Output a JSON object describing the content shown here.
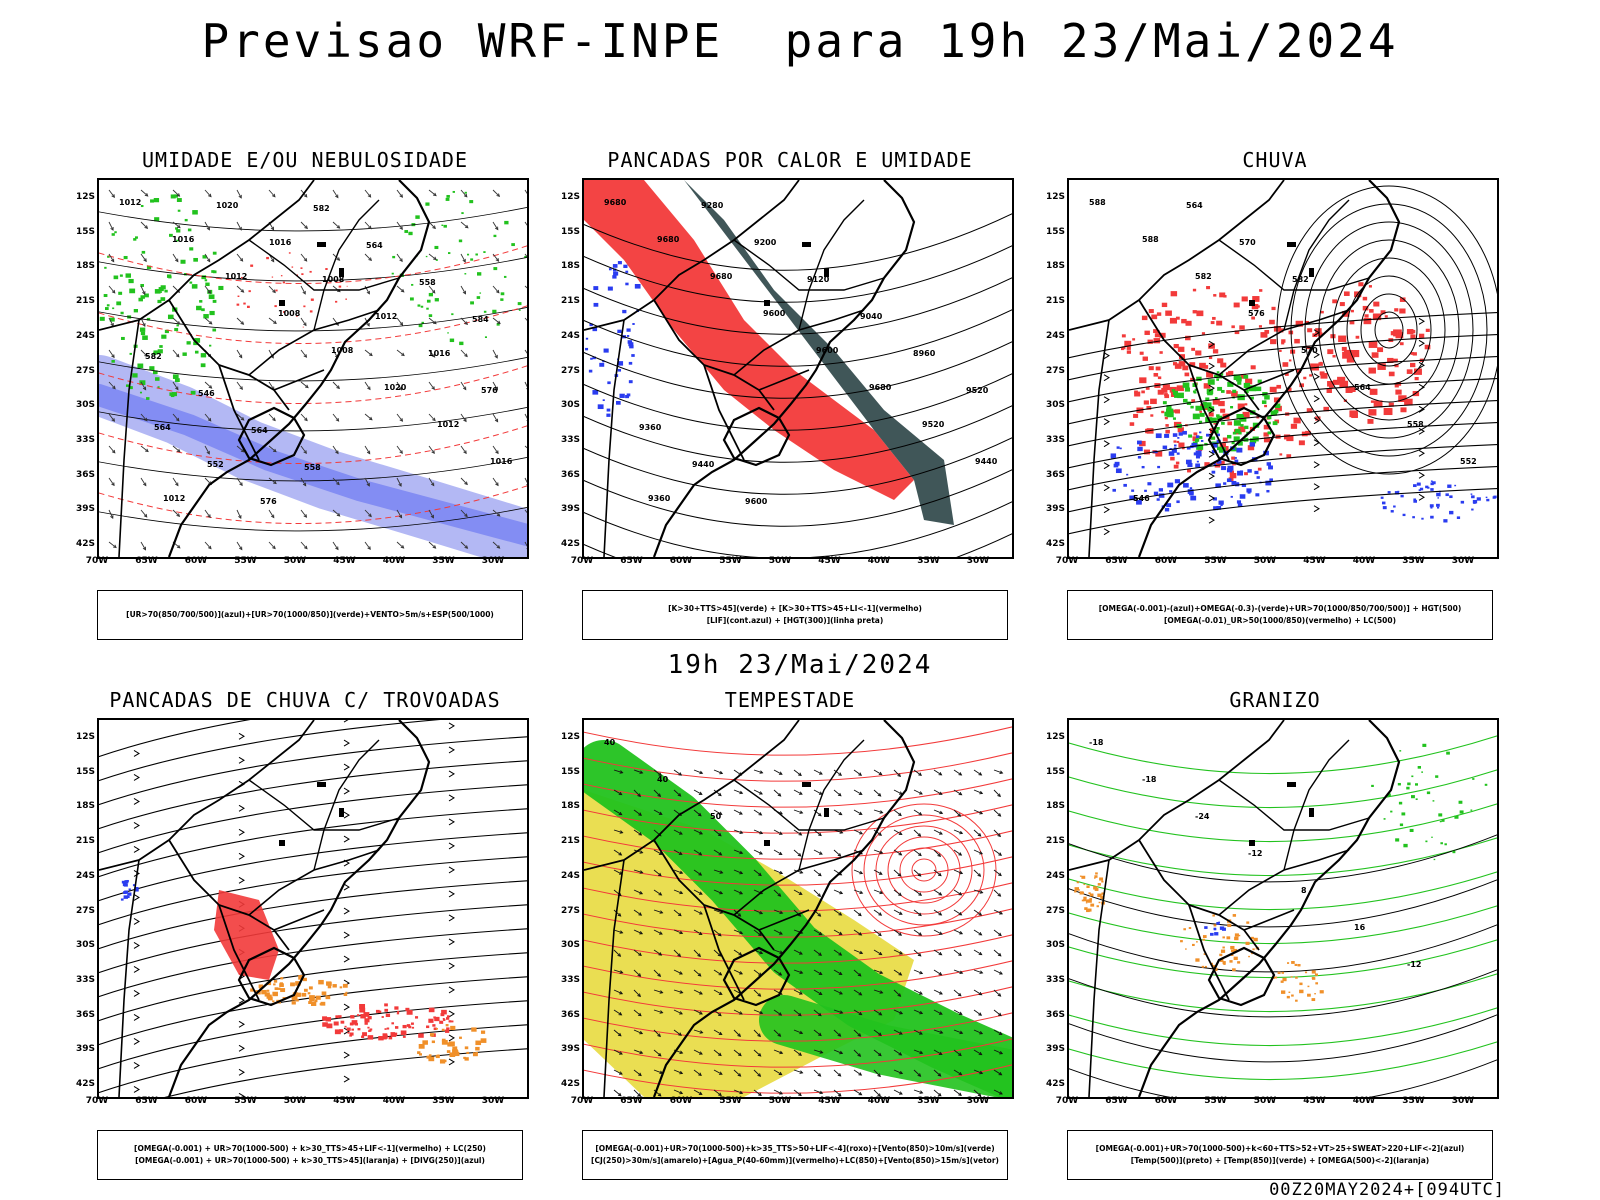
{
  "title": "Previsao WRF-INPE  para 19h 23/Mai/2024",
  "subtitle": "19h 23/Mai/2024",
  "footer": "00Z20MAY2024+[094UTC]",
  "lat_labels": [
    "12S",
    "15S",
    "18S",
    "21S",
    "24S",
    "27S",
    "30S",
    "33S",
    "36S",
    "39S",
    "42S"
  ],
  "lon_labels": [
    "70W",
    "65W",
    "60W",
    "55W",
    "50W",
    "45W",
    "40W",
    "35W",
    "30W"
  ],
  "panels": [
    {
      "title": "UMIDADE E/OU NEBULOSIDADE",
      "legend": [
        "[UR>70(850/700/500)](azul)+[UR>70(1000/850)](verde)+VENTO>5m/s+ESP(500/1000)"
      ],
      "contour_labels": [
        "1012",
        "1016",
        "1012",
        "1008",
        "1008",
        "1020",
        "1012",
        "1016",
        "1012",
        "1020",
        "1016",
        "1008",
        "1012",
        "1016",
        "576",
        "564",
        "552",
        "576",
        "582",
        "564",
        "558",
        "584",
        "582",
        "546",
        "564",
        "558"
      ]
    },
    {
      "title": "PANCADAS POR CALOR E UMIDADE",
      "legend": [
        "[K>30+TTS>45](verde) + [K>30+TTS>45+LI<-1](vermelho)",
        "[LIF](cont.azul) + [HGT(300)](linha preta)"
      ],
      "contour_labels": [
        "9680",
        "9680",
        "9680",
        "9600",
        "9600",
        "9680",
        "9520",
        "9440",
        "9360",
        "9280",
        "9200",
        "9120",
        "9040",
        "8960",
        "9520",
        "9360",
        "9440",
        "9600"
      ]
    },
    {
      "title": "CHUVA",
      "legend": [
        "[OMEGA(-0.001)-(azul)+OMEGA(-0.3)-(verde)+UR>70(1000/850/700/500)] + HGT(500)",
        "[OMEGA(-0.01)_UR>50(1000/850)(vermelho) + LC(500)"
      ],
      "contour_labels": [
        "588",
        "588",
        "582",
        "576",
        "570",
        "564",
        "558",
        "552",
        "546",
        "564",
        "570",
        "582"
      ]
    },
    {
      "title": "PANCADAS DE CHUVA C/ TROVOADAS",
      "legend": [
        "[OMEGA(-0.001) + UR>70(1000-500) + k>30_TTS>45+LIF<-1](vermelho) + LC(250)",
        "[OMEGA(-0.001) + UR>70(1000-500) + k>30_TTS>45](laranja) + [DIVG(250)](azul)"
      ],
      "contour_labels": []
    },
    {
      "title": "TEMPESTADE",
      "legend": [
        "[OMEGA(-0.001)+UR>70(1000-500)+k>35_TTS>50+LIF<-4](roxo)+[Vento(850)>10m/s](verde)",
        "[CJ(250)>30m/s](amarelo)+[Agua_P(40-60mm)](vermelho)+LC(850)+[Vento(850)>15m/s](vetor)"
      ],
      "contour_labels": [
        "40",
        "40",
        "50"
      ]
    },
    {
      "title": "GRANIZO",
      "legend": [
        "[OMEGA(-0.001)+UR>70(1000-500)+k<60+TTS>52+VT>25+SWEAT>220+LIF<-2](azul)",
        "[Temp(500)](preto) + [Temp(850)](verde) + [OMEGA(500)<-2](laranja)"
      ],
      "contour_labels": [
        "-18",
        "-18",
        "-24",
        "-12",
        "8",
        "16",
        "-12"
      ]
    }
  ],
  "colors": {
    "blue": "#2a3cf0",
    "lightblue": "#9aa0f0",
    "green": "#22c21e",
    "red": "#f23a3a",
    "orange": "#f0902a",
    "yellow": "#e6d834",
    "darkteal": "#2b4446",
    "black": "#000000"
  }
}
